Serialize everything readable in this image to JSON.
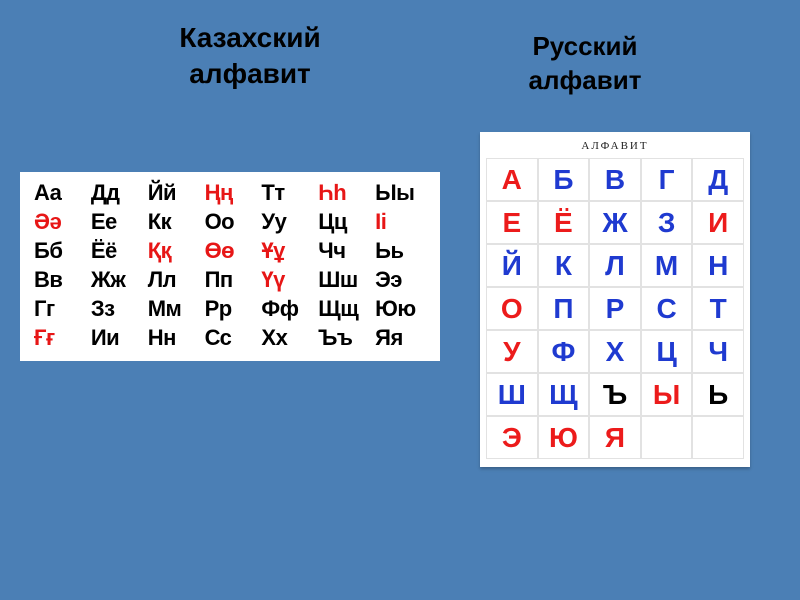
{
  "background_color": "#4b7fb5",
  "headings": {
    "kazakh": "Казахский\nалфавит",
    "russian": "Русский\nалфавит"
  },
  "kazakh": {
    "panel_bg": "#ffffff",
    "text_color": "#000000",
    "highlight_color": "#e71616",
    "font_size": 22,
    "cols": 7,
    "rows": 6,
    "cells": [
      {
        "t": "Аа",
        "red": false
      },
      {
        "t": "Дд",
        "red": false
      },
      {
        "t": "Йй",
        "red": false
      },
      {
        "t": "Ңң",
        "red": true
      },
      {
        "t": "Тт",
        "red": false
      },
      {
        "t": "Һһ",
        "red": true
      },
      {
        "t": "Ыы",
        "red": false
      },
      {
        "t": "Әә",
        "red": true
      },
      {
        "t": "Ее",
        "red": false
      },
      {
        "t": "Кк",
        "red": false
      },
      {
        "t": "Оо",
        "red": false
      },
      {
        "t": "Уу",
        "red": false
      },
      {
        "t": "Цц",
        "red": false
      },
      {
        "t": "Іі",
        "red": true
      },
      {
        "t": "Бб",
        "red": false
      },
      {
        "t": "Ёё",
        "red": false
      },
      {
        "t": "Ққ",
        "red": true
      },
      {
        "t": "Өө",
        "red": true
      },
      {
        "t": "Ұұ",
        "red": true
      },
      {
        "t": "Чч",
        "red": false
      },
      {
        "t": "Ьь",
        "red": false
      },
      {
        "t": "Вв",
        "red": false
      },
      {
        "t": "Жж",
        "red": false
      },
      {
        "t": "Лл",
        "red": false
      },
      {
        "t": "Пп",
        "red": false
      },
      {
        "t": "Үү",
        "red": true
      },
      {
        "t": "Шш",
        "red": false
      },
      {
        "t": "Ээ",
        "red": false
      },
      {
        "t": "Гг",
        "red": false
      },
      {
        "t": "Зз",
        "red": false
      },
      {
        "t": "Мм",
        "red": false
      },
      {
        "t": "Рр",
        "red": false
      },
      {
        "t": "Фф",
        "red": false
      },
      {
        "t": "Щщ",
        "red": false
      },
      {
        "t": "Юю",
        "red": false
      },
      {
        "t": "Ғғ",
        "red": true
      },
      {
        "t": "Ии",
        "red": false
      },
      {
        "t": "Нн",
        "red": false
      },
      {
        "t": "Сс",
        "red": false
      },
      {
        "t": "Хх",
        "red": false
      },
      {
        "t": "Ъъ",
        "red": false
      },
      {
        "t": "Яя",
        "red": false
      }
    ]
  },
  "russian": {
    "panel_bg": "#ffffff",
    "title": "АЛФАВИТ",
    "title_fontsize": 11,
    "grid_border_color": "#e2e2e2",
    "cell_font_size": 28,
    "colors": {
      "red": "#ec1b1b",
      "blue": "#1f3ad0",
      "black": "#000000"
    },
    "cols": 5,
    "rows": 7,
    "cells": [
      {
        "t": "А",
        "c": "red"
      },
      {
        "t": "Б",
        "c": "blue"
      },
      {
        "t": "В",
        "c": "blue"
      },
      {
        "t": "Г",
        "c": "blue"
      },
      {
        "t": "Д",
        "c": "blue"
      },
      {
        "t": "Е",
        "c": "red"
      },
      {
        "t": "Ё",
        "c": "red"
      },
      {
        "t": "Ж",
        "c": "blue"
      },
      {
        "t": "З",
        "c": "blue"
      },
      {
        "t": "И",
        "c": "red"
      },
      {
        "t": "Й",
        "c": "blue"
      },
      {
        "t": "К",
        "c": "blue"
      },
      {
        "t": "Л",
        "c": "blue"
      },
      {
        "t": "М",
        "c": "blue"
      },
      {
        "t": "Н",
        "c": "blue"
      },
      {
        "t": "О",
        "c": "red"
      },
      {
        "t": "П",
        "c": "blue"
      },
      {
        "t": "Р",
        "c": "blue"
      },
      {
        "t": "С",
        "c": "blue"
      },
      {
        "t": "Т",
        "c": "blue"
      },
      {
        "t": "У",
        "c": "red"
      },
      {
        "t": "Ф",
        "c": "blue"
      },
      {
        "t": "Х",
        "c": "blue"
      },
      {
        "t": "Ц",
        "c": "blue"
      },
      {
        "t": "Ч",
        "c": "blue"
      },
      {
        "t": "Ш",
        "c": "blue"
      },
      {
        "t": "Щ",
        "c": "blue"
      },
      {
        "t": "Ъ",
        "c": "black"
      },
      {
        "t": "Ы",
        "c": "red"
      },
      {
        "t": "Ь",
        "c": "black"
      },
      {
        "t": "Э",
        "c": "red"
      },
      {
        "t": "Ю",
        "c": "red"
      },
      {
        "t": "Я",
        "c": "red"
      },
      {
        "t": "",
        "c": "black"
      },
      {
        "t": "",
        "c": "black"
      }
    ]
  }
}
